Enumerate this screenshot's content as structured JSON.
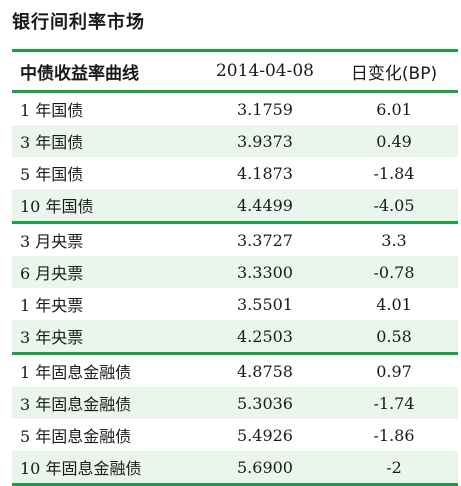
{
  "title": "银行间利率市场",
  "header": {
    "col1": "中债收益率曲线",
    "col2": "2014-04-08",
    "col3": "日变化(BP)"
  },
  "groups": [
    {
      "rows": [
        {
          "name": "1 年国债",
          "value": "3.1759",
          "change": "6.01"
        },
        {
          "name": "3 年国债",
          "value": "3.9373",
          "change": "0.49"
        },
        {
          "name": "5 年国债",
          "value": "4.1873",
          "change": "-1.84"
        },
        {
          "name": "10 年国债",
          "value": "4.4499",
          "change": "-4.05"
        }
      ]
    },
    {
      "rows": [
        {
          "name": "3 月央票",
          "value": "3.3727",
          "change": "3.3"
        },
        {
          "name": "6 月央票",
          "value": "3.3300",
          "change": "-0.78"
        },
        {
          "name": "1 年央票",
          "value": "3.5501",
          "change": "4.01"
        },
        {
          "name": "3 年央票",
          "value": "4.2503",
          "change": "0.58"
        }
      ]
    },
    {
      "rows": [
        {
          "name": "1 年固息金融债",
          "value": "4.8758",
          "change": "0.97"
        },
        {
          "name": "3 年固息金融债",
          "value": "5.3036",
          "change": "-1.74"
        },
        {
          "name": "5 年固息金融债",
          "value": "5.4926",
          "change": "-1.86"
        },
        {
          "name": "10 年固息金融债",
          "value": "5.6900",
          "change": "-2"
        }
      ]
    }
  ],
  "colors": {
    "accent": "#1f9e48",
    "alt_row": "#eaf5ec"
  }
}
